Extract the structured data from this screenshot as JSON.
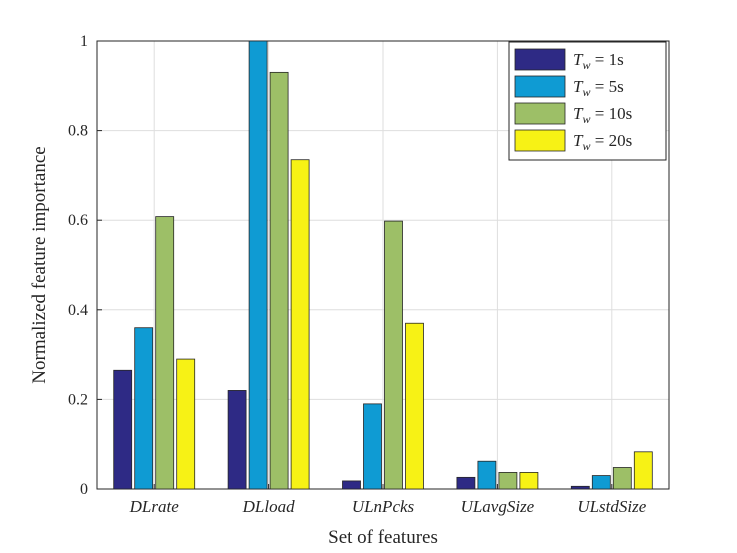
{
  "chart_data": {
    "type": "bar",
    "title": "",
    "xlabel": "Set of features",
    "ylabel": "Normalized feature importance",
    "ylim": [
      0,
      1
    ],
    "yticks": [
      0,
      0.2,
      0.4,
      0.6,
      0.8,
      1
    ],
    "ytick_labels": [
      "0",
      "0.2",
      "0.4",
      "0.6",
      "0.8",
      "1"
    ],
    "grid": true,
    "legend_position": "top-right",
    "categories": [
      "DLrate",
      "DLload",
      "ULnPcks",
      "ULavgSize",
      "ULstdSize"
    ],
    "series": [
      {
        "name": "T_w = 1s",
        "legend_symbol": "T",
        "legend_sub": "w",
        "legend_value": " = 1s",
        "color": "#2e2a85",
        "values": [
          0.265,
          0.22,
          0.018,
          0.026,
          0.006
        ]
      },
      {
        "name": "T_w = 5s",
        "legend_symbol": "T",
        "legend_sub": "w",
        "legend_value": " = 5s",
        "color": "#0f9bd3",
        "values": [
          0.36,
          1.0,
          0.19,
          0.062,
          0.03
        ]
      },
      {
        "name": "T_w = 10s",
        "legend_symbol": "T",
        "legend_sub": "w",
        "legend_value": " = 10s",
        "color": "#9dbf67",
        "values": [
          0.608,
          0.93,
          0.598,
          0.037,
          0.048
        ]
      },
      {
        "name": "T_w = 20s",
        "legend_symbol": "T",
        "legend_sub": "w",
        "legend_value": " = 20s",
        "color": "#f7f215",
        "values": [
          0.29,
          0.735,
          0.37,
          0.037,
          0.083
        ]
      }
    ]
  }
}
